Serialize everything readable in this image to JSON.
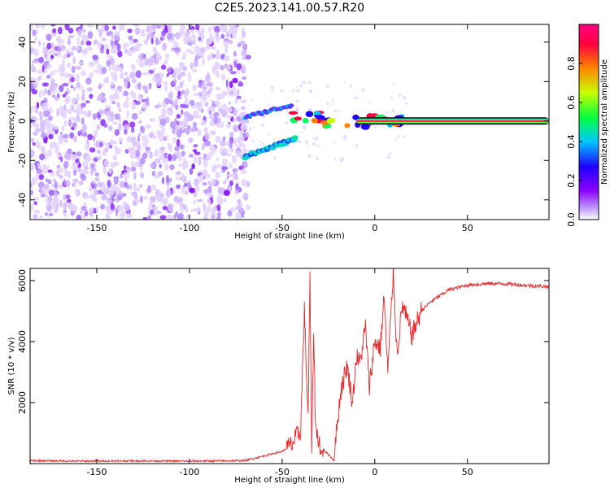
{
  "title": "C2E5.2023.141.00.57.R20",
  "chart_data": [
    {
      "type": "heatmap",
      "xlabel": "Height of straight line (km)",
      "ylabel": "Frequency (Hz)",
      "xlim": [
        -186,
        94
      ],
      "ylim": [
        -50,
        49
      ],
      "x_ticks": [
        -150,
        -100,
        -50,
        0,
        50
      ],
      "y_ticks": [
        -40,
        -20,
        0,
        20,
        40
      ],
      "colorbar": {
        "label": "Normalized spectral amplitude",
        "range": [
          0,
          1
        ],
        "ticks": [
          "0.0",
          "0.2",
          "0.4",
          "0.6",
          "0.8"
        ],
        "colors": [
          "#ffffff",
          "#c8a8ff",
          "#8a00ff",
          "#2000ff",
          "#00c8ff",
          "#00ff40",
          "#c8ff00",
          "#ff8000",
          "#ff0040",
          "#ff0080"
        ]
      },
      "regions": [
        {
          "name": "noise",
          "x": [
            -186,
            -70
          ],
          "freq": [
            -50,
            49
          ],
          "amplitude": 0.1
        },
        {
          "name": "lower-branch",
          "x": [
            -70,
            -43
          ],
          "freq": [
            -18,
            -9
          ],
          "amplitude": 0.3
        },
        {
          "name": "upper-branch",
          "x": [
            -70,
            -45
          ],
          "freq": [
            2,
            8
          ],
          "amplitude": 0.2
        },
        {
          "name": "carrier",
          "x": [
            -45,
            94
          ],
          "freq": [
            -3,
            3
          ],
          "amplitude": 0.95
        }
      ]
    },
    {
      "type": "line",
      "xlabel": "Height of straight line (km)",
      "ylabel": "SNR (10 * v/v)",
      "xlim": [
        -186,
        94
      ],
      "ylim": [
        0,
        6400
      ],
      "x_ticks": [
        -150,
        -100,
        -50,
        0,
        50
      ],
      "y_ticks": [
        2000,
        4000,
        6000
      ],
      "color": "#e8282a",
      "x": [
        -186,
        -160,
        -130,
        -100,
        -80,
        -70,
        -60,
        -50,
        -45,
        -40,
        -38,
        -36,
        -35,
        -34,
        -33,
        -32,
        -31,
        -30,
        -29,
        -28,
        -27,
        -25,
        -22,
        -20,
        -18,
        -15,
        -12,
        -10,
        -8,
        -5,
        -3,
        0,
        3,
        5,
        7,
        9,
        10,
        12,
        15,
        20,
        25,
        30,
        40,
        50,
        60,
        70,
        80,
        94
      ],
      "values": [
        100,
        80,
        90,
        80,
        90,
        100,
        250,
        400,
        600,
        1100,
        5000,
        1500,
        6000,
        300,
        4500,
        1200,
        900,
        800,
        300,
        500,
        400,
        300,
        100,
        1500,
        2500,
        3200,
        2000,
        3500,
        3300,
        4500,
        2500,
        4000,
        3800,
        5500,
        3000,
        5200,
        6300,
        3600,
        5200,
        4200,
        5000,
        5300,
        5700,
        5850,
        5900,
        5900,
        5850,
        5800
      ]
    }
  ]
}
